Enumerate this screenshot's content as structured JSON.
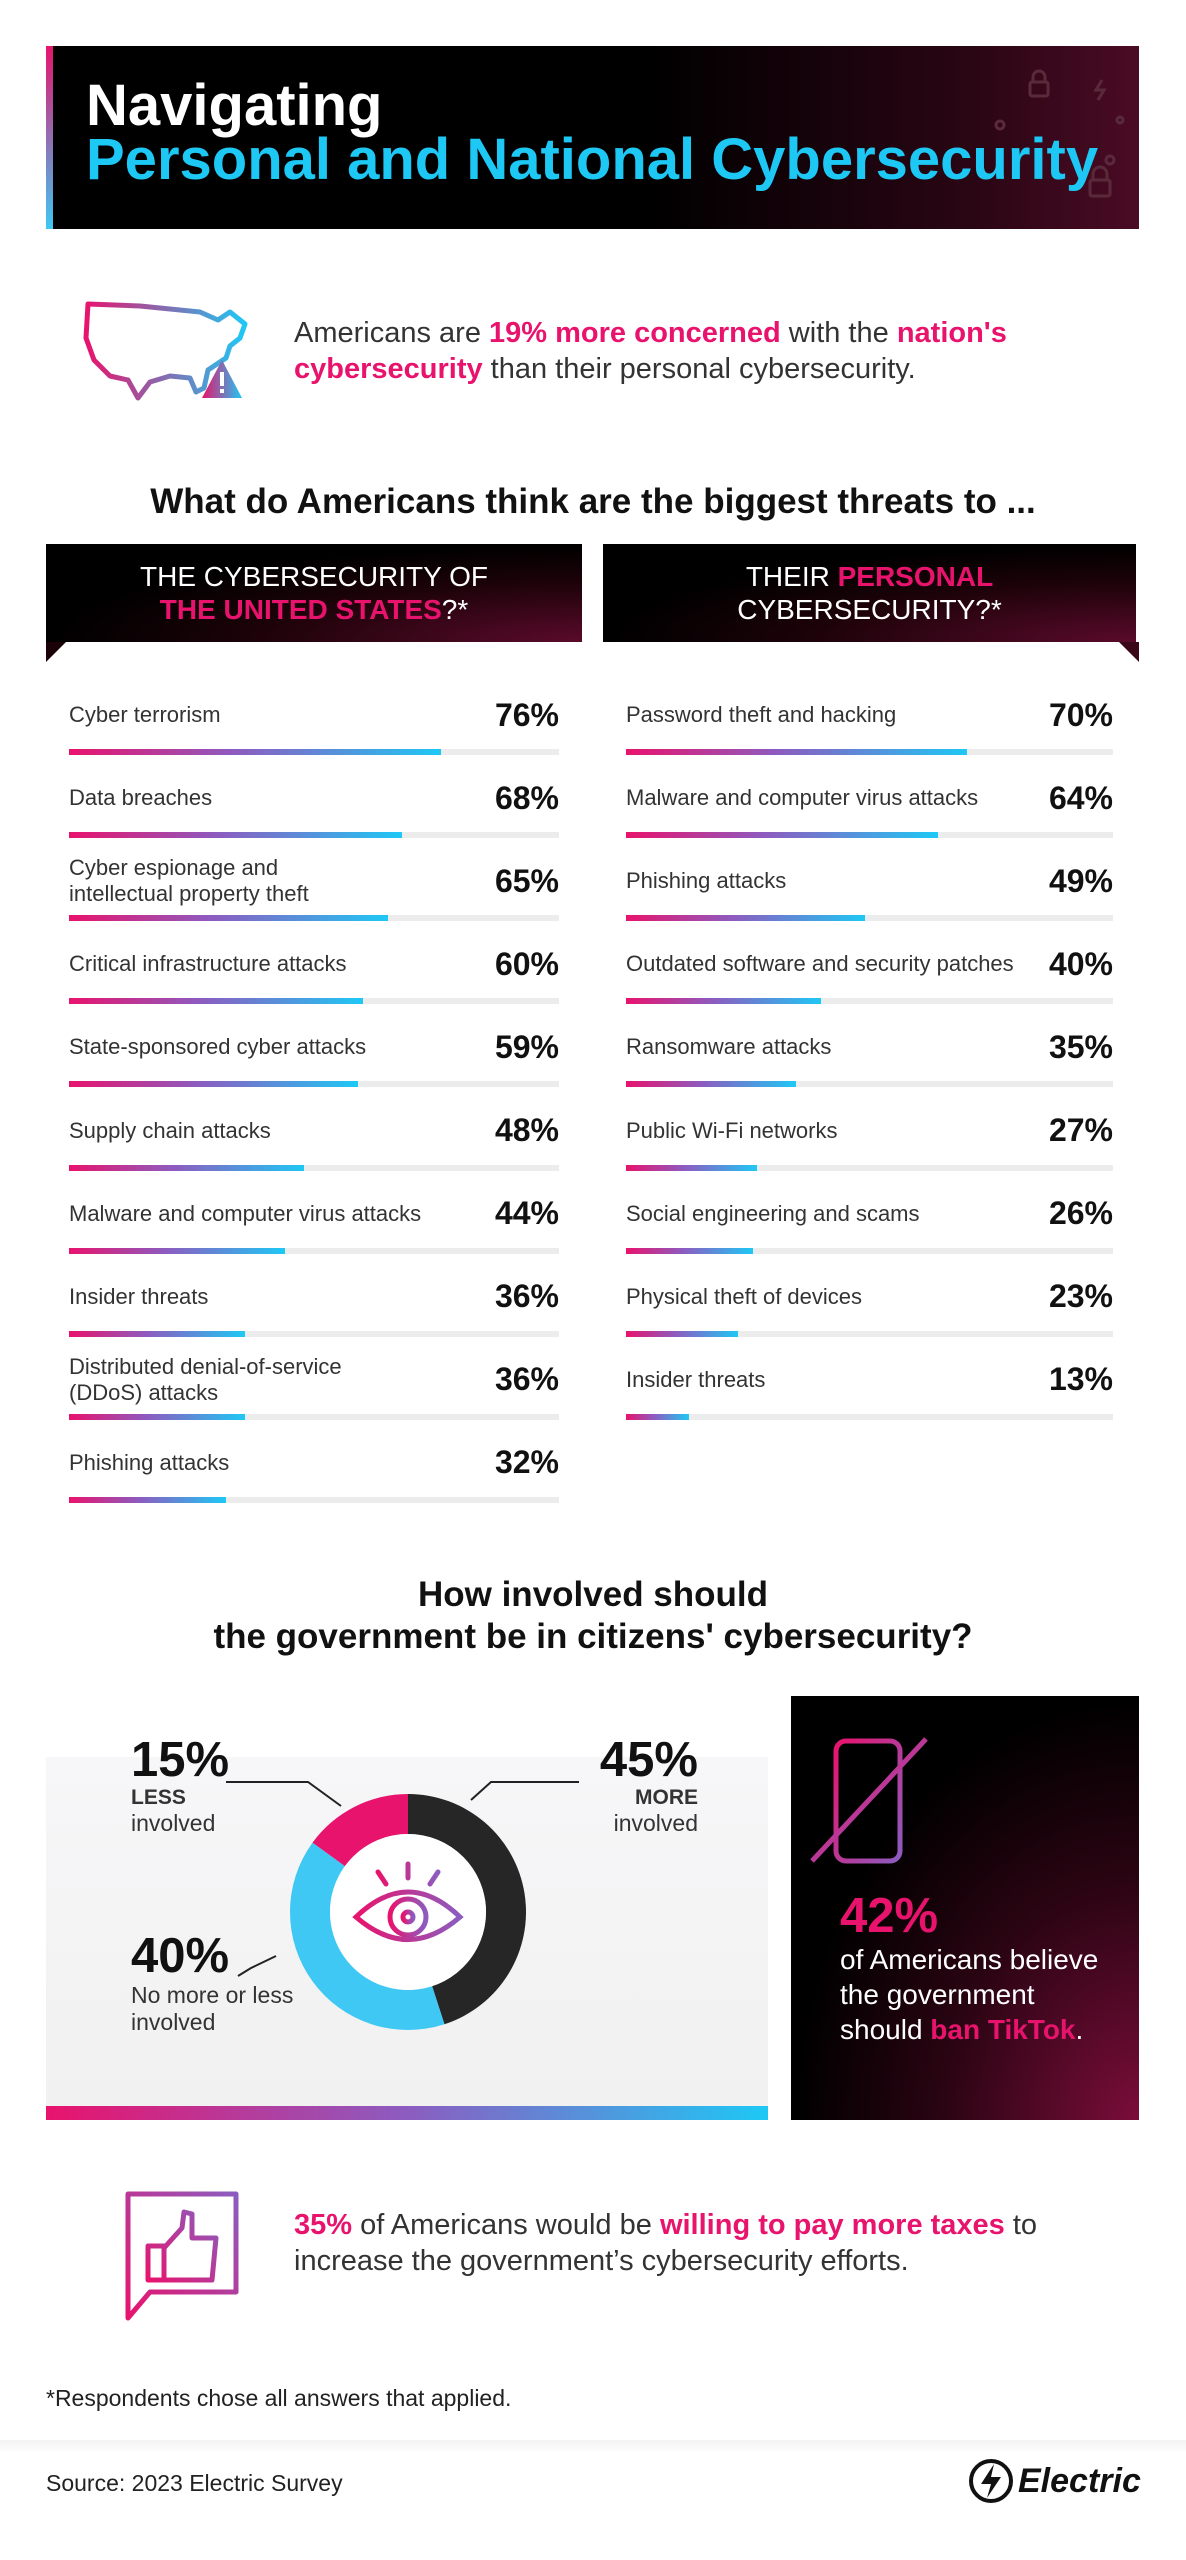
{
  "header": {
    "title_line1": "Navigating",
    "title_line2": "Personal and National Cybersecurity"
  },
  "intro": [
    "Americans are ",
    {
      "text": "19% more concerned",
      "color": "#e8136d"
    },
    " with the ",
    {
      "text": "nation's cybersecurity",
      "color": "#e8136d"
    },
    " than their personal cybersecurity."
  ],
  "threats_heading": "What do Americans think are the biggest threats to ...",
  "chart_data": [
    {
      "type": "bar",
      "orientation": "horizontal",
      "title_lines": [
        [
          "THE CYBERSECURITY OF"
        ],
        [
          {
            "text": "THE UNITED STATES",
            "color": "#e8136d"
          },
          "?*"
        ]
      ],
      "categories": [
        "Cyber terrorism",
        "Data breaches",
        "Cyber espionage and\nintellectual property theft",
        "Critical infrastructure attacks",
        "State-sponsored cyber attacks",
        "Supply chain attacks",
        "Malware and computer virus attacks",
        "Insider threats",
        "Distributed denial-of-service\n(DDoS) attacks",
        "Phishing attacks"
      ],
      "values": [
        76,
        68,
        65,
        60,
        59,
        48,
        44,
        36,
        36,
        32
      ],
      "value_labels": [
        "76%",
        "68%",
        "65%",
        "60%",
        "59%",
        "48%",
        "44%",
        "36%",
        "36%",
        "32%"
      ],
      "xlim": [
        0,
        100
      ]
    },
    {
      "type": "bar",
      "orientation": "horizontal",
      "title_lines": [
        [
          "THEIR ",
          {
            "text": "PERSONAL",
            "color": "#e8136d"
          }
        ],
        [
          "CYBERSECURITY?*"
        ]
      ],
      "categories": [
        "Password theft and hacking",
        "Malware and computer virus attacks",
        "Phishing attacks",
        "Outdated software and security patches",
        "Ransomware attacks",
        "Public Wi-Fi networks",
        "Social engineering and scams",
        "Physical theft of devices",
        "Insider threats"
      ],
      "values": [
        70,
        64,
        49,
        40,
        35,
        27,
        26,
        23,
        13
      ],
      "value_labels": [
        "70%",
        "64%",
        "49%",
        "40%",
        "35%",
        "27%",
        "26%",
        "23%",
        "13%"
      ],
      "xlim": [
        0,
        100
      ]
    },
    {
      "type": "pie",
      "donut": true,
      "title_lines": [
        "How involved should",
        "the government be in citizens' cybersecurity?"
      ],
      "slices": [
        {
          "value": 45,
          "value_label": "45%",
          "emphasis": "MORE",
          "label": "involved",
          "color": "#262626"
        },
        {
          "value": 40,
          "value_label": "40%",
          "label": "No more or less involved",
          "color": "#3ec8f3"
        },
        {
          "value": 15,
          "value_label": "15%",
          "emphasis": "LESS",
          "label": "involved",
          "color": "#e8136d"
        }
      ]
    }
  ],
  "tiktok": {
    "value_label": "42%",
    "text": [
      " of Americans believe the government should ",
      {
        "text": "ban TikTok",
        "color": "#e8136d"
      },
      "."
    ]
  },
  "taxes": [
    {
      "text": "35%",
      "color": "#e8136d"
    },
    " of Americans would be ",
    {
      "text": "willing to pay more taxes",
      "color": "#e8136d"
    },
    " to increase the government’s cybersecurity efforts."
  ],
  "footnote": "*Respondents chose all answers that applied.",
  "source": "Source: 2023 Electric Survey",
  "logo": "Electric"
}
